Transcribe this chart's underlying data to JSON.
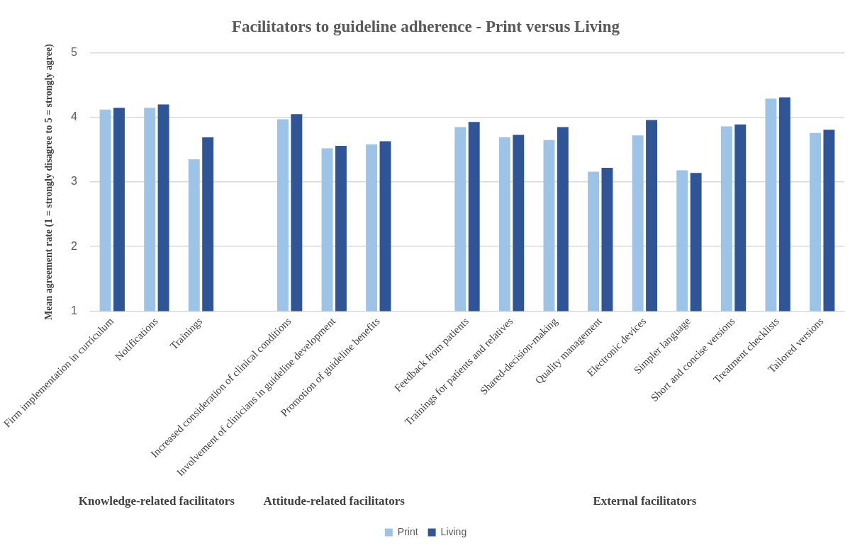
{
  "chart_data": {
    "type": "bar",
    "title": "Facilitators to guideline adherence - Print versus Living",
    "ylabel": "Mean agreement rate (1 = strongly disagree to 5 = strongly agree)",
    "categories": [
      "Firm implementation in curriculum",
      "Notifications",
      "Trainings",
      null,
      "Increased consideration of clinical conditions",
      "Involvement of clinicians in guideline development",
      "Promotion of guideline benefits",
      null,
      "Feedback from patients",
      "Trainings for patients and relatives",
      "Shared-decision-making",
      "Quality management",
      "Electronic devices",
      "Simpler language",
      "Short and concise versions",
      "Treatment checklists",
      "Tailored versions"
    ],
    "series": [
      {
        "name": "Print",
        "color": "#9dc3e6",
        "values": [
          4.12,
          4.15,
          3.35,
          null,
          3.97,
          3.52,
          3.58,
          null,
          3.85,
          3.69,
          3.65,
          3.16,
          3.72,
          3.18,
          3.86,
          4.29,
          3.76
        ]
      },
      {
        "name": "Living",
        "color": "#2f5597",
        "values": [
          4.15,
          4.2,
          3.69,
          null,
          4.05,
          3.56,
          3.63,
          null,
          3.93,
          3.73,
          3.85,
          3.22,
          3.96,
          3.14,
          3.89,
          4.31,
          3.81
        ]
      }
    ],
    "ylim": [
      1,
      5
    ],
    "yticks": [
      1,
      2,
      3,
      4,
      5
    ],
    "grid": "y",
    "legend": "bottom",
    "annotations": [
      "Knowledge-related facilitators",
      "Attitude-related facilitators",
      "External facilitators"
    ]
  }
}
